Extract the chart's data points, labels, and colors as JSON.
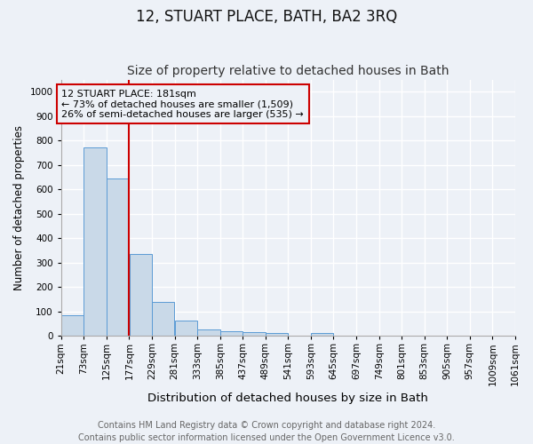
{
  "title": "12, STUART PLACE, BATH, BA2 3RQ",
  "subtitle": "Size of property relative to detached houses in Bath",
  "xlabel": "Distribution of detached houses by size in Bath",
  "ylabel": "Number of detached properties",
  "footer": "Contains HM Land Registry data © Crown copyright and database right 2024.\nContains public sector information licensed under the Open Government Licence v3.0.",
  "annotation_title": "12 STUART PLACE: 181sqm",
  "annotation_line1": "← 73% of detached houses are smaller (1,509)",
  "annotation_line2": "26% of semi-detached houses are larger (535) →",
  "bar_color": "#c9d9e8",
  "bar_edge_color": "#5b9bd5",
  "vline_color": "#cc0000",
  "vline_x": 177,
  "annotation_box_color": "#cc0000",
  "bins": [
    21,
    73,
    125,
    177,
    229,
    281,
    333,
    385,
    437,
    489,
    541,
    593,
    645,
    697,
    749,
    801,
    853,
    905,
    957,
    1009,
    1061
  ],
  "bin_labels": [
    "21sqm",
    "73sqm",
    "125sqm",
    "177sqm",
    "229sqm",
    "281sqm",
    "333sqm",
    "385sqm",
    "437sqm",
    "489sqm",
    "541sqm",
    "593sqm",
    "645sqm",
    "697sqm",
    "749sqm",
    "801sqm",
    "853sqm",
    "905sqm",
    "957sqm",
    "1009sqm",
    "1061sqm"
  ],
  "counts": [
    85,
    770,
    645,
    335,
    137,
    62,
    26,
    20,
    15,
    10,
    0,
    12,
    0,
    0,
    0,
    0,
    0,
    0,
    0,
    0
  ],
  "ylim": [
    0,
    1050
  ],
  "yticks": [
    0,
    100,
    200,
    300,
    400,
    500,
    600,
    700,
    800,
    900,
    1000
  ],
  "bg_color": "#edf1f7",
  "grid_color": "#ffffff",
  "title_fontsize": 12,
  "subtitle_fontsize": 10,
  "xlabel_fontsize": 9.5,
  "ylabel_fontsize": 8.5,
  "tick_fontsize": 7.5,
  "annotation_fontsize": 8,
  "footer_fontsize": 7
}
